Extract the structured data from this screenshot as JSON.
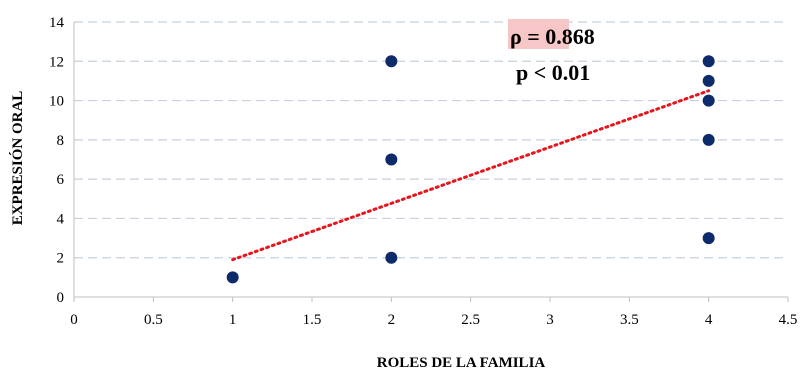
{
  "chart_data": {
    "type": "scatter",
    "xlabel": "ROLES DE LA FAMILIA",
    "ylabel": "EXPRESIÓN ORAL",
    "xlim": [
      0,
      4.5
    ],
    "ylim": [
      0,
      14
    ],
    "x_ticks": [
      "0",
      "0.5",
      "1",
      "1.5",
      "2",
      "2.5",
      "3",
      "3.5",
      "4",
      "4.5"
    ],
    "y_ticks": [
      "0",
      "2",
      "4",
      "6",
      "8",
      "10",
      "12",
      "14"
    ],
    "grid": "horizontal dashed",
    "legend": "none",
    "point_color": "#0d2a6b",
    "trendline_color": "#e8141c",
    "points": [
      {
        "x": 1,
        "y": 1
      },
      {
        "x": 2,
        "y": 2
      },
      {
        "x": 2,
        "y": 7
      },
      {
        "x": 2,
        "y": 12
      },
      {
        "x": 4,
        "y": 3
      },
      {
        "x": 4,
        "y": 8
      },
      {
        "x": 4,
        "y": 10
      },
      {
        "x": 4,
        "y": 11
      },
      {
        "x": 4,
        "y": 12
      }
    ],
    "trendline": {
      "x": [
        1,
        4
      ],
      "y": [
        1.9,
        10.5
      ]
    },
    "annotations": {
      "rho": "ρ = 0.868",
      "p": "p < 0.01"
    }
  }
}
